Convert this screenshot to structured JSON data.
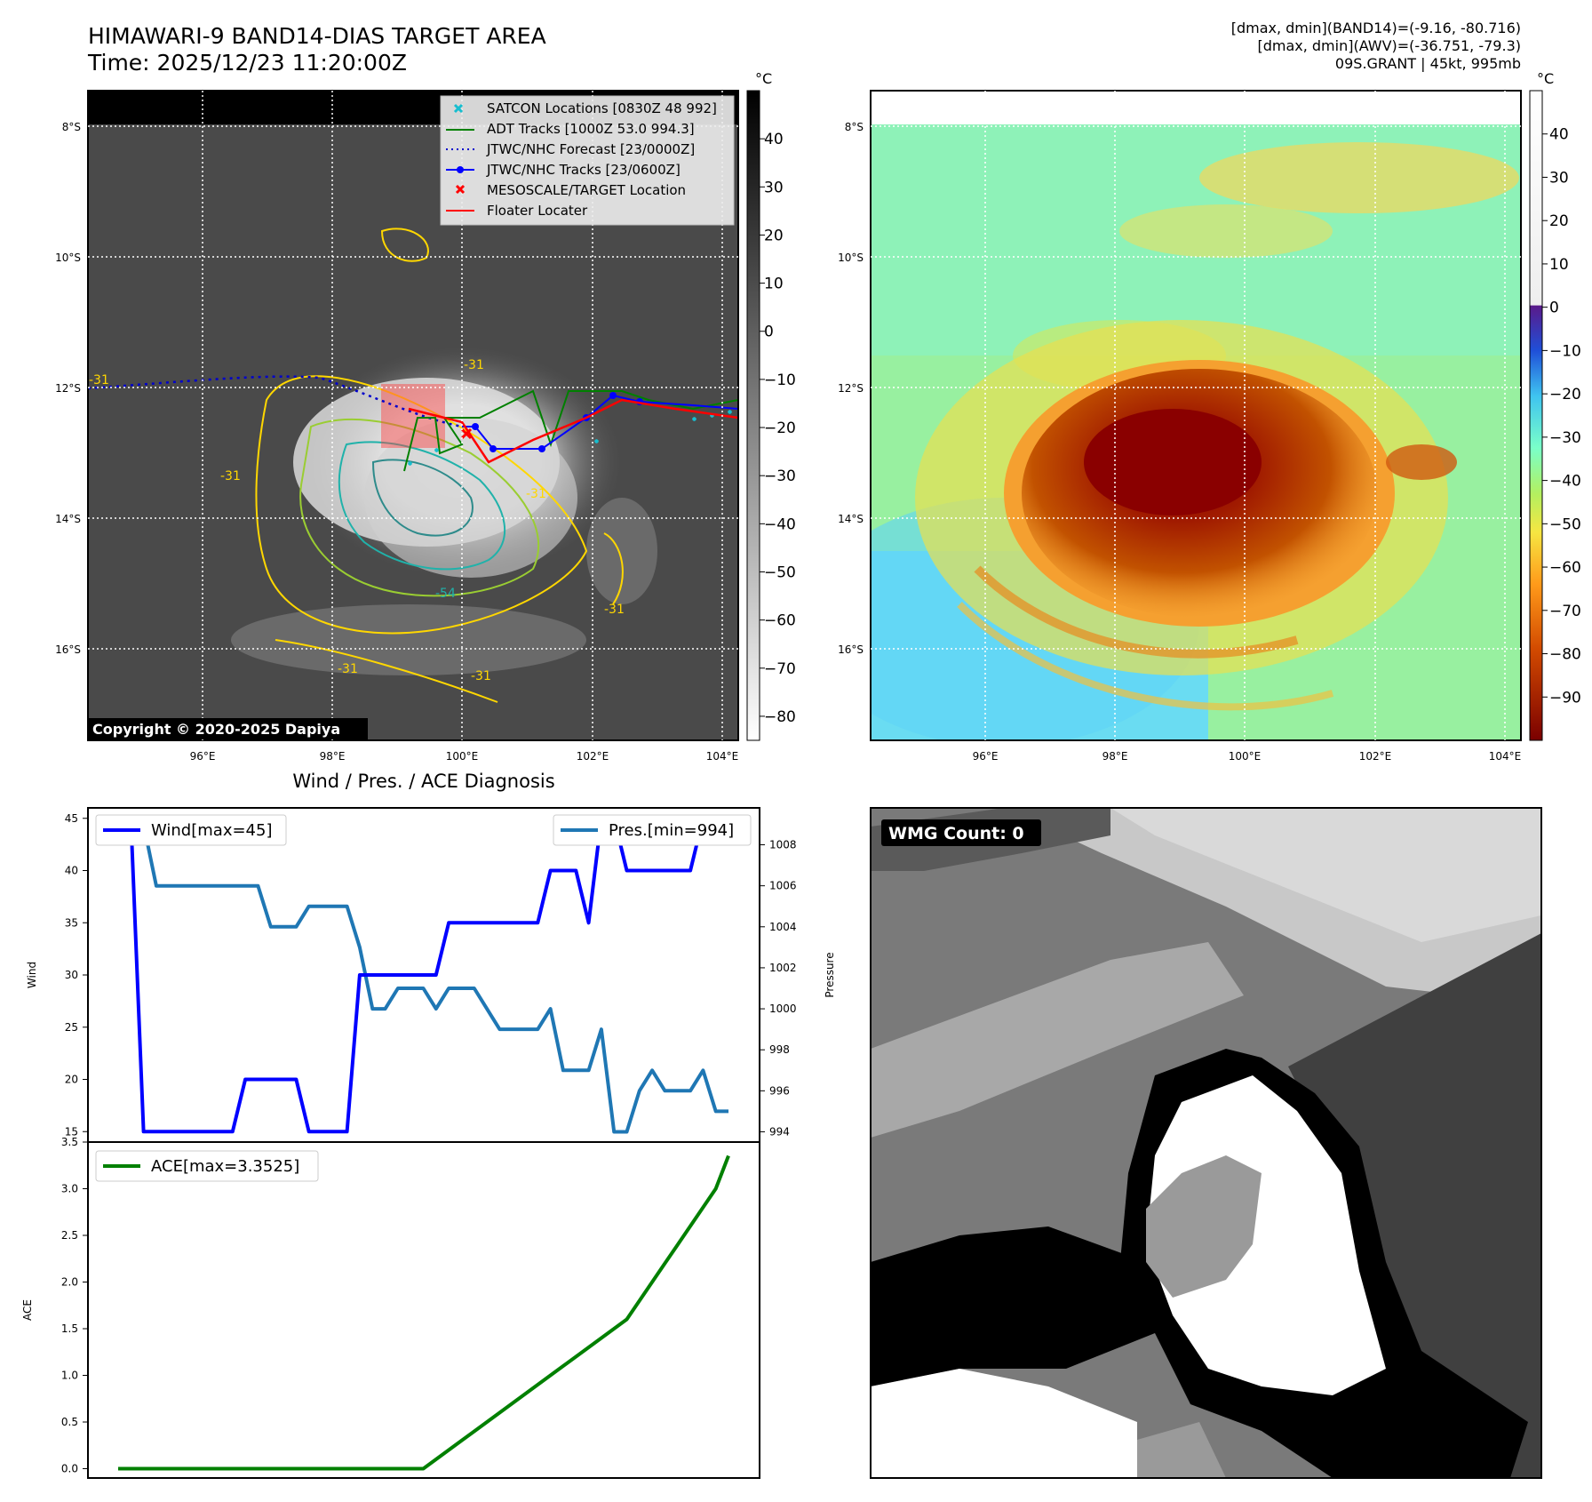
{
  "figure": {
    "title": "HIMAWARI-9 BAND14-DIAS TARGET AREA",
    "time": "Time: 2025/12/23 11:20:00Z",
    "info_line1": "[dmax, dmin](BAND14)=(-9.16, -80.716)",
    "info_line2": "[dmax, dmin](AWV)=(-36.751, -79.3)",
    "info_line3": "09S.GRANT | 45kt, 995mb",
    "copyright": "Copyright © 2020-2025 Dapiya",
    "wmg_label": "WMG Count: 0",
    "colorbar_unit": "°C"
  },
  "map_axes": {
    "lat_ticks": [
      "8°S",
      "10°S",
      "12°S",
      "14°S",
      "16°S"
    ],
    "lon_ticks": [
      "96°E",
      "98°E",
      "100°E",
      "102°E",
      "104°E"
    ],
    "gray_colorbar_ticks": [
      "40",
      "30",
      "20",
      "10",
      "0",
      "−10",
      "−20",
      "−30",
      "−40",
      "−50",
      "−60",
      "−70",
      "−80"
    ],
    "color_colorbar_ticks": [
      "40",
      "30",
      "20",
      "10",
      "0",
      "−10",
      "−20",
      "−30",
      "−40",
      "−50",
      "−60",
      "−70",
      "−80",
      "−90"
    ],
    "contour_labels": [
      "-31",
      "-31",
      "-31",
      "-31",
      "-31",
      "-31",
      "-31",
      "-54"
    ]
  },
  "legend": {
    "satcon": "SATCON Locations [0830Z 48 992]",
    "adt": "ADT Tracks [1000Z 53.0 994.3]",
    "forecast": "JTWC/NHC Forecast [23/0000Z]",
    "tracks": "JTWC/NHC Tracks [23/0600Z]",
    "target": "MESOSCALE/TARGET Location",
    "floater": "Floater Locater"
  },
  "colors": {
    "wind": "#0000ff",
    "pressure": "#1f77b4",
    "ace": "#008000",
    "forecast": "#0000cc",
    "adt": "#008000",
    "floater": "#ff0000",
    "satcon": "#17becf"
  },
  "chart_data": {
    "type": "line",
    "title": "Wind / Pres. / ACE Diagnosis",
    "wind": {
      "name": "Wind[max=45]",
      "ylabel": "Wind",
      "ylim": [
        14,
        46
      ],
      "yticks": [
        15,
        20,
        25,
        30,
        35,
        40,
        45
      ],
      "values": [
        45,
        45,
        15,
        15,
        15,
        15,
        15,
        15,
        15,
        15,
        20,
        20,
        20,
        20,
        20,
        15,
        15,
        15,
        15,
        30,
        30,
        30,
        30,
        30,
        30,
        30,
        35,
        35,
        35,
        35,
        35,
        35,
        35,
        35,
        40,
        40,
        40,
        35,
        45,
        45,
        40,
        40,
        40,
        40,
        40,
        40,
        45,
        45,
        45
      ]
    },
    "pressure": {
      "name": "Pres.[min=994]",
      "ylabel": "Pressure",
      "ylim": [
        993.5,
        1009.8
      ],
      "yticks": [
        994,
        996,
        998,
        1000,
        1002,
        1004,
        1006,
        1008
      ],
      "values": [
        1009,
        1009,
        1009,
        1006,
        1006,
        1006,
        1006,
        1006,
        1006,
        1006,
        1006,
        1006,
        1004,
        1004,
        1004,
        1005,
        1005,
        1005,
        1005,
        1003,
        1000,
        1000,
        1001,
        1001,
        1001,
        1000,
        1001,
        1001,
        1001,
        1000,
        999,
        999,
        999,
        999,
        1000,
        997,
        997,
        997,
        999,
        994,
        994,
        996,
        997,
        996,
        996,
        996,
        997,
        995,
        995
      ]
    },
    "ace": {
      "name": "ACE[max=3.3525]",
      "ylabel": "ACE",
      "ylim": [
        -0.1,
        3.5
      ],
      "yticks": [
        0.0,
        0.5,
        1.0,
        1.5,
        2.0,
        2.5,
        3.0,
        3.5
      ],
      "values": [
        0,
        0,
        0,
        0,
        0,
        0,
        0,
        0,
        0,
        0,
        0,
        0,
        0,
        0,
        0,
        0,
        0,
        0,
        0,
        0,
        0,
        0,
        0,
        0,
        0,
        0.1,
        0.2,
        0.3,
        0.4,
        0.5,
        0.6,
        0.7,
        0.8,
        0.9,
        1.0,
        1.1,
        1.2,
        1.3,
        1.4,
        1.5,
        1.6,
        1.8,
        2.0,
        2.2,
        2.4,
        2.6,
        2.8,
        3.0,
        3.3525
      ]
    }
  }
}
